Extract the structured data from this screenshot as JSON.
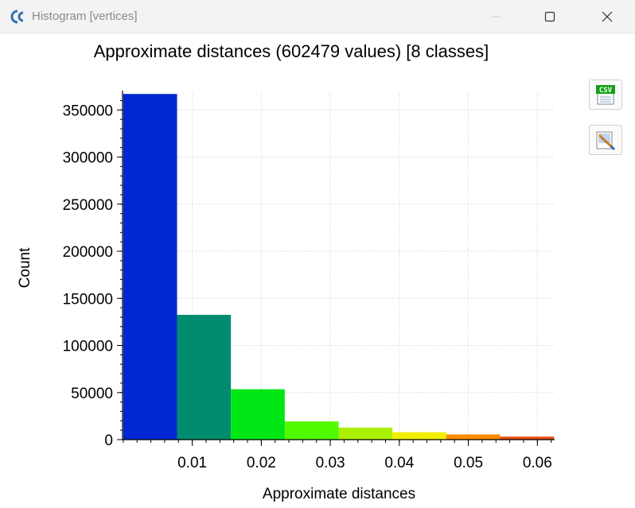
{
  "window": {
    "title": "Histogram [vertices]",
    "icon": "cloudcompare-logo-icon"
  },
  "controls": {
    "minimize": "minimize-icon",
    "maximize": "maximize-icon",
    "close": "close-icon"
  },
  "toolbar": {
    "csv_icon": "csv-export-icon",
    "csv_text": "CSV",
    "image_icon": "image-export-icon"
  },
  "chart_data": {
    "type": "bar",
    "title": "Approximate distances (602479 values) [8 classes]",
    "xlabel": "Approximate distances",
    "ylabel": "Count",
    "bin_edges": [
      0,
      0.0078,
      0.0156,
      0.0234,
      0.0312,
      0.039,
      0.0468,
      0.0546,
      0.0624
    ],
    "values": [
      367000,
      132500,
      53500,
      19300,
      12800,
      7900,
      5500,
      3200
    ],
    "colors": [
      "#0028d2",
      "#008c6e",
      "#00e614",
      "#50fa00",
      "#aaf000",
      "#f0f000",
      "#ff8c00",
      "#e65014"
    ],
    "xlim": [
      -0.0001,
      0.0625
    ],
    "ylim": [
      0,
      368000
    ],
    "x_ticks": [
      0.01,
      0.02,
      0.03,
      0.04,
      0.05,
      0.06
    ],
    "x_tick_labels": [
      "0.01",
      "0.02",
      "0.03",
      "0.04",
      "0.05",
      "0.06"
    ],
    "y_ticks": [
      0,
      50000,
      100000,
      150000,
      200000,
      250000,
      300000,
      350000
    ],
    "y_tick_labels": [
      "0",
      "50000",
      "100000",
      "150000",
      "200000",
      "250000",
      "300000",
      "350000"
    ],
    "grid": true,
    "legend": "none"
  }
}
